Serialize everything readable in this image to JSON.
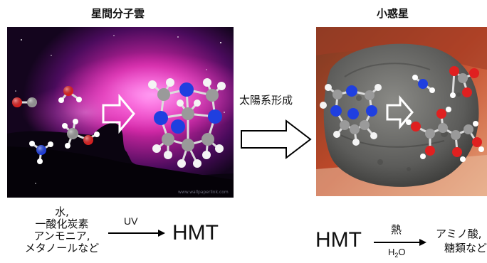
{
  "left_panel": {
    "title": "星間分子雲",
    "molecules_label": "水,\n一酸化炭素\nアンモニア,\nメタノールなど",
    "arrow_label": "UV",
    "product": "HMT"
  },
  "middle": {
    "label": "太陽系形成"
  },
  "right_panel": {
    "title": "小惑星",
    "reactant": "HMT",
    "arrow_label_top": "熱",
    "arrow_label_bottom_main": "H",
    "arrow_label_bottom_sub": "2",
    "arrow_label_bottom_end": "O",
    "products_line1": "アミノ酸,",
    "products_line2": "糖類など"
  },
  "colors": {
    "nebula_pink": "#d23cc0",
    "carbon": "#9a9a9a",
    "nitrogen": "#1f3fe0",
    "oxygen": "#e02020",
    "hydrogen": "#ffffff",
    "asteroid": "#6b6b69",
    "asteroid_bg": "#c24a2a"
  }
}
